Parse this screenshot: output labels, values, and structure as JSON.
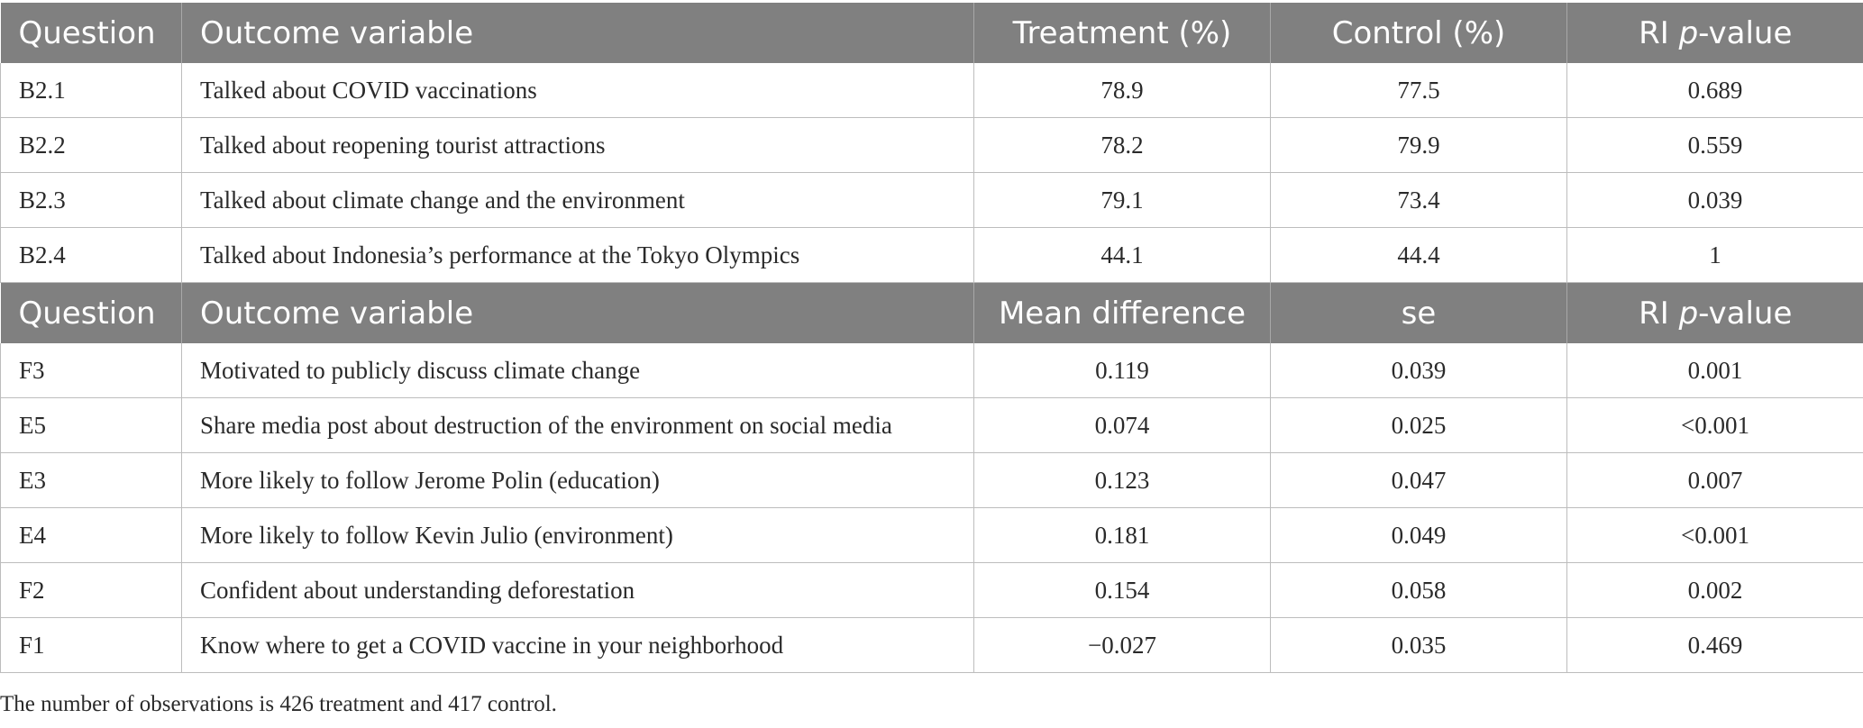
{
  "table1": {
    "headers": [
      "Question",
      "Outcome variable",
      "Treatment (%)",
      "Control (%)",
      "RI p-value"
    ],
    "header_p": "p",
    "header_pvalue_suffix": "-value",
    "header_ri_prefix": "RI ",
    "rows": [
      [
        "B2.1",
        "Talked about COVID vaccinations",
        "78.9",
        "77.5",
        "0.689"
      ],
      [
        "B2.2",
        "Talked about reopening tourist attractions",
        "78.2",
        "79.9",
        "0.559"
      ],
      [
        "B2.3",
        "Talked about climate change and the environment",
        "79.1",
        "73.4",
        "0.039"
      ],
      [
        "B2.4",
        "Talked about Indonesia’s performance at the Tokyo Olympics",
        "44.1",
        "44.4",
        "1"
      ]
    ]
  },
  "table2": {
    "headers": [
      "Question",
      "Outcome variable",
      "Mean difference",
      "se",
      "RI p-value"
    ],
    "header_p": "p",
    "header_pvalue_suffix": "-value",
    "header_ri_prefix": "RI ",
    "rows": [
      [
        "F3",
        "Motivated to publicly discuss climate change",
        "0.119",
        "0.039",
        "0.001"
      ],
      [
        "E5",
        "Share media post about destruction of the environment on social media",
        "0.074",
        "0.025",
        "<0.001"
      ],
      [
        "E3",
        "More likely to follow Jerome Polin (education)",
        "0.123",
        "0.047",
        "0.007"
      ],
      [
        "E4",
        "More likely to follow Kevin Julio (environment)",
        "0.181",
        "0.049",
        "<0.001"
      ],
      [
        "F2",
        "Confident about understanding deforestation",
        "0.154",
        "0.058",
        "0.002"
      ],
      [
        "F1",
        "Know where to get a COVID vaccine in your neighborhood",
        "−0.027",
        "0.035",
        "0.469"
      ]
    ]
  },
  "footnote": "The number of observations is 426 treatment and 417 control."
}
